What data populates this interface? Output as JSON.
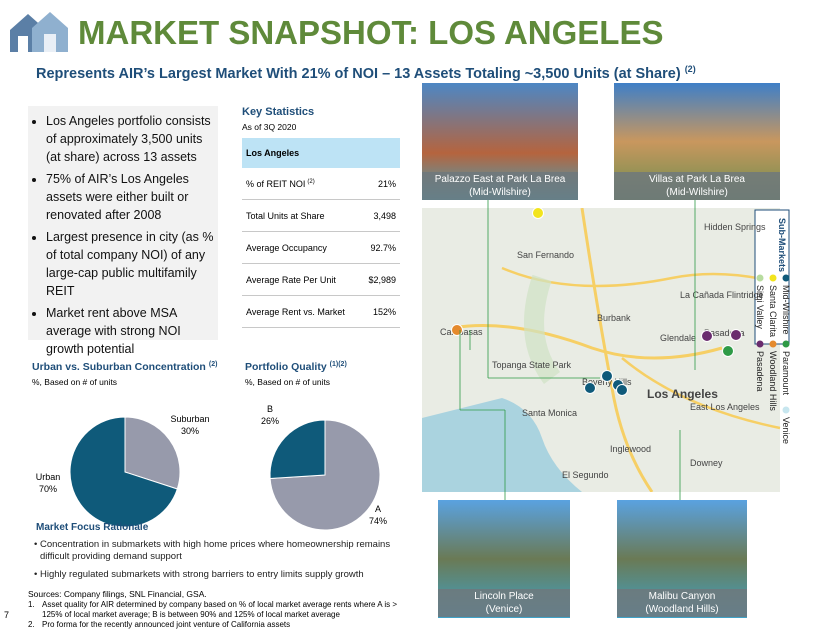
{
  "header": {
    "title": "MARKET SNAPSHOT: LOS ANGELES",
    "subtitle": "Represents AIR’s Largest Market With 21% of NOI – 13 Assets Totaling ~3,500 Units (at Share)",
    "subtitle_note": "(2)"
  },
  "bullets": [
    "Los Angeles portfolio consists of approximately 3,500 units (at share) across 13 assets",
    "75% of AIR’s Los Angeles assets were either built or renovated after 2008",
    "Largest presence in city (as % of total company NOI) of any large-cap public multifamily REIT",
    "Market rent above MSA average with strong NOI growth potential"
  ],
  "key_statistics": {
    "title": "Key Statistics",
    "subtitle": "As of 3Q 2020",
    "header": "Los Angeles",
    "rows": [
      {
        "label": "% of REIT NOI",
        "note": "(2)",
        "value": "21%"
      },
      {
        "label": "Total Units at Share",
        "value": "3,498"
      },
      {
        "label": "Average Occupancy",
        "value": "92.7%"
      },
      {
        "label": "Average Rate Per Unit",
        "value": "$2,989"
      },
      {
        "label": "Average Rent vs. Market",
        "value": "152%"
      }
    ]
  },
  "chart_data": [
    {
      "type": "pie",
      "title": "Urban vs. Suburban Concentration",
      "title_note": "(2)",
      "subtitle": "%, Based on # of units",
      "categories": [
        "Suburban",
        "Urban"
      ],
      "values": [
        30,
        70
      ],
      "value_labels": [
        "30%",
        "70%"
      ],
      "colors": [
        "#979aab",
        "#0f5a7a"
      ]
    },
    {
      "type": "pie",
      "title": "Portfolio Quality",
      "title_note": "(1)(2)",
      "subtitle": "%, Based on # of units",
      "categories": [
        "A",
        "B"
      ],
      "values": [
        74,
        26
      ],
      "value_labels": [
        "74%",
        "26%"
      ],
      "colors": [
        "#979aab",
        "#0f5a7a"
      ]
    }
  ],
  "rationale": {
    "title": "Market Focus Rationale",
    "bullets": [
      "Concentration in submarkets with high home prices where homeownership remains difficult providing demand support",
      "Highly regulated submarkets with strong barriers to entry limits supply growth"
    ]
  },
  "photos": [
    {
      "name": "Palazzo East at Park La Brea",
      "area": "(Mid-Wilshire)"
    },
    {
      "name": "Villas at Park La Brea",
      "area": "(Mid-Wilshire)"
    },
    {
      "name": "Lincoln Place",
      "area": "(Venice)"
    },
    {
      "name": "Malibu Canyon",
      "area": "(Woodland Hills)"
    }
  ],
  "map": {
    "places": [
      "San Fernando",
      "Burbank",
      "Glendale",
      "Pasadena",
      "Calabasas",
      "Topanga State Park",
      "Beverly Hills",
      "Los Angeles",
      "Santa Monica",
      "East Los Angeles",
      "Inglewood",
      "Downey",
      "El Segundo",
      "La Cañada Flintridge",
      "Hidden Springs"
    ],
    "legend": {
      "title": "Sub-Markets",
      "items": [
        {
          "name": "Mid-Wilshire",
          "color": "#0f5a7a"
        },
        {
          "name": "Santa Clarita",
          "color": "#f2e41d"
        },
        {
          "name": "Simi Valley",
          "color": "#b8dca0"
        },
        {
          "name": "Paramount",
          "color": "#2e9a46"
        },
        {
          "name": "Woodland Hills",
          "color": "#e58a2d"
        },
        {
          "name": "Pasadena",
          "color": "#6a2c6e"
        },
        {
          "name": "Venice",
          "color": "#c7e6ef"
        }
      ]
    }
  },
  "sources": "Sources: Company filings, SNL Financial, GSA.",
  "footnotes": [
    {
      "marker": "1.",
      "text": "Asset quality for AIR determined by company based on % of local market average rents where A is > 125% of local market average; B is between 90% and 125% of local market average"
    },
    {
      "marker": "2.",
      "text": "Pro forma for the recently announced joint venture of California assets"
    }
  ],
  "page_number": "7"
}
